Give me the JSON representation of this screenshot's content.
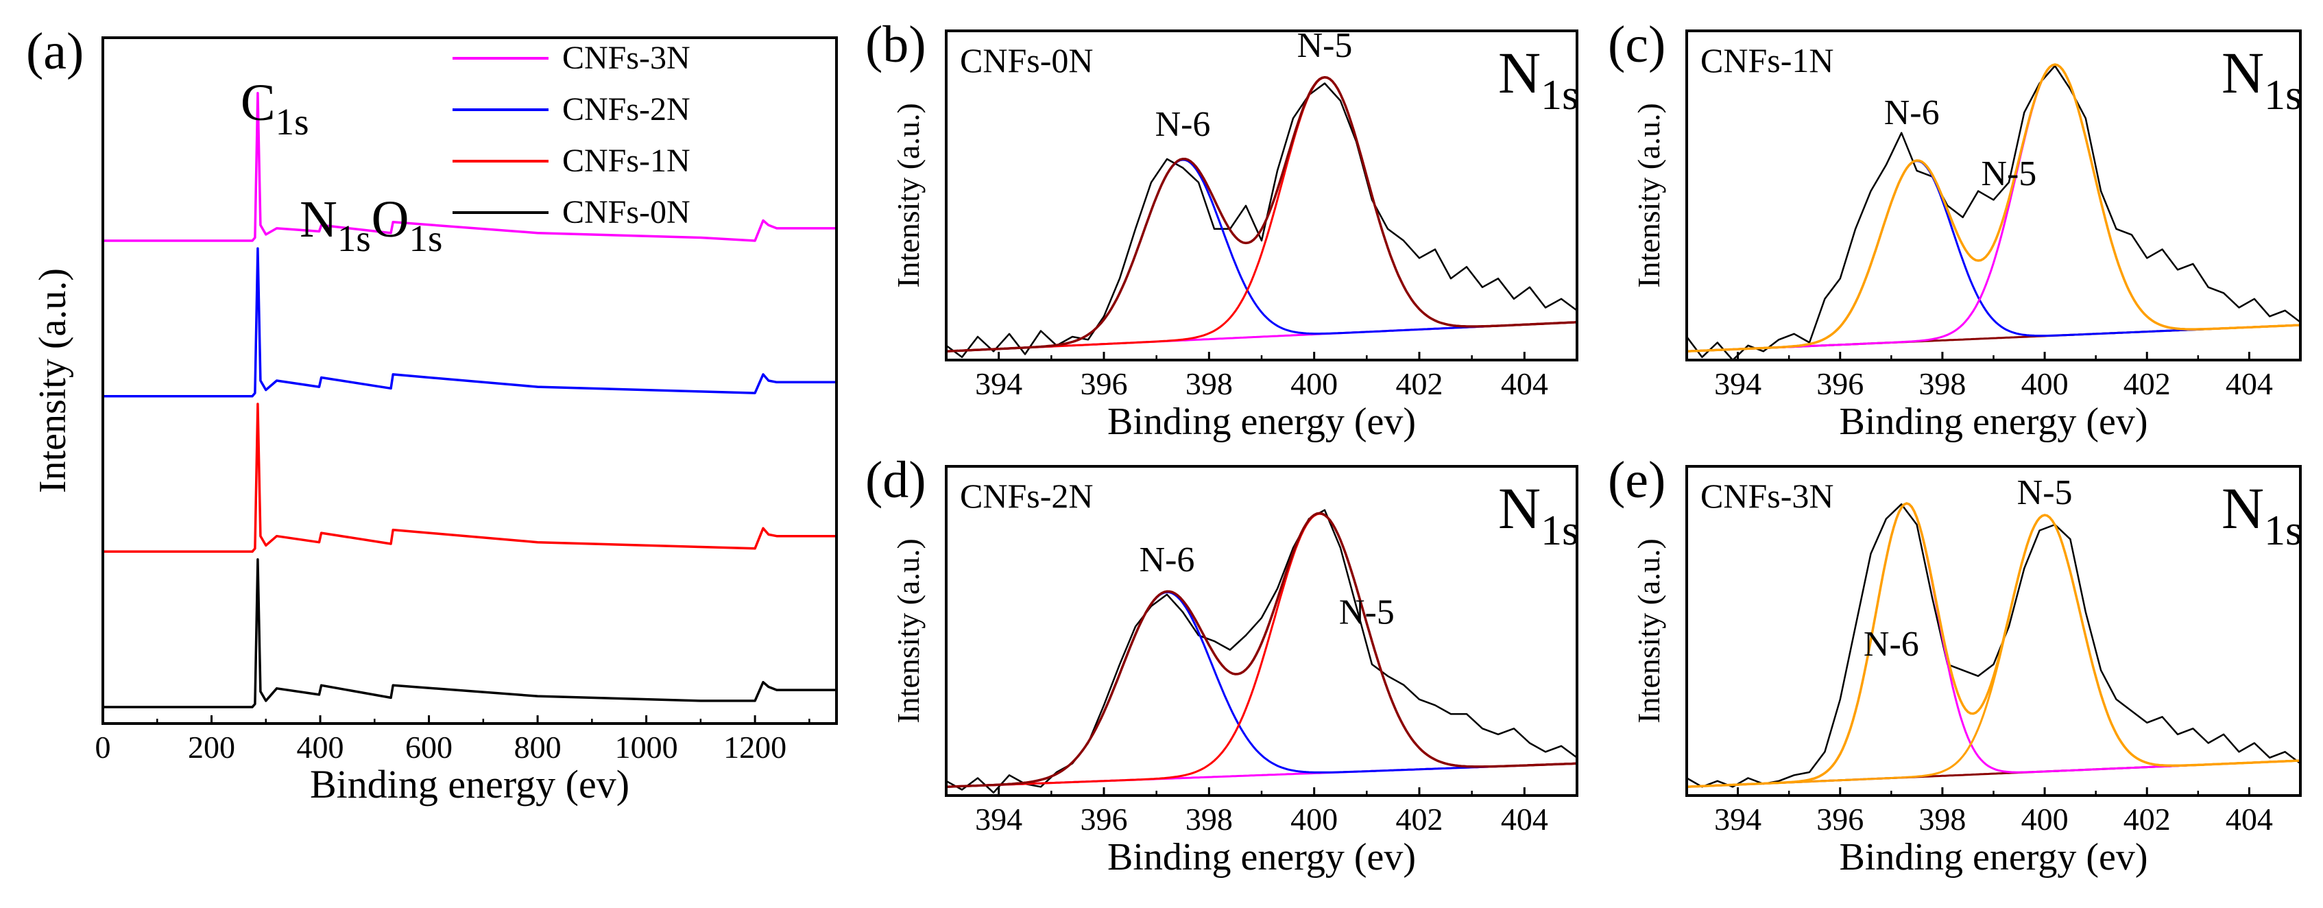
{
  "chart_data": [
    {
      "panel": "(a)",
      "type": "line",
      "title": "",
      "xlabel": "Binding energy (ev)",
      "ylabel": "Intensity (a.u.)",
      "xlim": [
        0,
        1350
      ],
      "ylim": [
        0,
        4.2
      ],
      "xticks": [
        0,
        200,
        400,
        600,
        800,
        1000,
        1200
      ],
      "legend": "top-right",
      "annotations": [
        {
          "main": "C",
          "sub": "1s",
          "x": 285
        },
        {
          "main": "N",
          "sub": "1s",
          "x": 400
        },
        {
          "main": "O",
          "sub": "1s",
          "x": 532
        }
      ],
      "series": [
        {
          "name": "CNFs-3N",
          "color": "#ff00ff",
          "offset": 3.0,
          "x": [
            0,
            275,
            280,
            285,
            290,
            300,
            320,
            398,
            402,
            530,
            534,
            800,
            1100,
            1200,
            1215,
            1225,
            1240,
            1350
          ],
          "y": [
            0,
            0,
            0.02,
            0.95,
            0.1,
            0.04,
            0.08,
            0.06,
            0.1,
            0.05,
            0.12,
            0.05,
            0.02,
            0.0,
            0.13,
            0.1,
            0.08,
            0.08
          ]
        },
        {
          "name": "CNFs-2N",
          "color": "#0000ff",
          "offset": 2.0,
          "x": [
            0,
            275,
            280,
            285,
            290,
            300,
            320,
            398,
            402,
            530,
            534,
            800,
            1100,
            1200,
            1215,
            1225,
            1240,
            1350
          ],
          "y": [
            0,
            0,
            0.02,
            0.95,
            0.1,
            0.04,
            0.1,
            0.06,
            0.12,
            0.05,
            0.14,
            0.06,
            0.03,
            0.02,
            0.14,
            0.1,
            0.09,
            0.09
          ]
        },
        {
          "name": "CNFs-1N",
          "color": "#ff0000",
          "offset": 1.0,
          "x": [
            0,
            275,
            280,
            285,
            290,
            300,
            320,
            398,
            402,
            530,
            534,
            800,
            1100,
            1200,
            1215,
            1225,
            1240,
            1350
          ],
          "y": [
            0,
            0,
            0.02,
            0.95,
            0.1,
            0.04,
            0.1,
            0.06,
            0.12,
            0.05,
            0.14,
            0.06,
            0.03,
            0.02,
            0.15,
            0.11,
            0.1,
            0.1
          ]
        },
        {
          "name": "CNFs-0N",
          "color": "#000000",
          "offset": 0.0,
          "x": [
            0,
            275,
            280,
            285,
            290,
            300,
            320,
            398,
            402,
            530,
            534,
            800,
            1100,
            1200,
            1215,
            1225,
            1240,
            1350
          ],
          "y": [
            0,
            0,
            0.02,
            0.95,
            0.1,
            0.04,
            0.12,
            0.08,
            0.14,
            0.06,
            0.14,
            0.07,
            0.04,
            0.04,
            0.16,
            0.13,
            0.11,
            0.11
          ]
        }
      ]
    },
    {
      "panel": "(b)",
      "type": "line",
      "sample": "CNFs-0N",
      "spectrum_main": "N",
      "spectrum_sub": "1s",
      "xlabel": "Binding energy (ev)",
      "ylabel": "Intensity (a.u.)",
      "xlim": [
        393,
        405
      ],
      "ylim": [
        -0.03,
        1.1
      ],
      "xticks": [
        394,
        396,
        398,
        400,
        402,
        404
      ],
      "peaks": [
        {
          "name": "N-6",
          "center": 397.5,
          "height": 0.62,
          "sigma": 0.75,
          "color": "#0000ff"
        },
        {
          "name": "N-5",
          "center": 400.2,
          "height": 0.88,
          "sigma": 0.8,
          "color": "#ff0000"
        }
      ],
      "envelope_color": "#8b0000",
      "background": {
        "start": 0.0,
        "end": 0.1,
        "color": "#ff00ff"
      },
      "labels": [
        {
          "text": "N-6",
          "x": 397.5,
          "y": 0.74
        },
        {
          "text": "N-5",
          "x": 400.2,
          "y": 1.01
        }
      ],
      "raw_data": {
        "x": [
          393.0,
          393.3,
          393.6,
          393.9,
          394.2,
          394.5,
          394.8,
          395.1,
          395.4,
          395.7,
          396.0,
          396.3,
          396.6,
          396.9,
          397.2,
          397.5,
          397.8,
          398.1,
          398.4,
          398.7,
          399.0,
          399.3,
          399.6,
          399.9,
          400.2,
          400.5,
          400.8,
          401.1,
          401.4,
          401.7,
          402.0,
          402.3,
          402.6,
          402.9,
          403.2,
          403.5,
          403.8,
          404.1,
          404.4,
          404.7,
          405.0
        ],
        "y": [
          0.02,
          -0.02,
          0.05,
          0.0,
          0.06,
          -0.01,
          0.07,
          0.02,
          0.05,
          0.04,
          0.12,
          0.25,
          0.42,
          0.58,
          0.66,
          0.63,
          0.58,
          0.42,
          0.42,
          0.5,
          0.38,
          0.62,
          0.8,
          0.88,
          0.92,
          0.86,
          0.72,
          0.52,
          0.42,
          0.38,
          0.32,
          0.35,
          0.25,
          0.29,
          0.22,
          0.25,
          0.18,
          0.22,
          0.15,
          0.18,
          0.14
        ]
      }
    },
    {
      "panel": "(c)",
      "type": "line",
      "sample": "CNFs-1N",
      "spectrum_main": "N",
      "spectrum_sub": "1s",
      "xlabel": "Binding energy (ev)",
      "ylabel": "Intensity (a.u.)",
      "xlim": [
        393,
        405
      ],
      "ylim": [
        -0.03,
        1.1
      ],
      "xticks": [
        394,
        396,
        398,
        400,
        402,
        404
      ],
      "peaks": [
        {
          "name": "N-6",
          "center": 397.5,
          "height": 0.62,
          "sigma": 0.7,
          "color": "#0000ff"
        },
        {
          "name": "N-5",
          "center": 400.2,
          "height": 0.93,
          "sigma": 0.75,
          "color": "#ff00ff"
        }
      ],
      "envelope_color": "#ffa000",
      "background": {
        "start": 0.0,
        "end": 0.09,
        "color": "#8b0000"
      },
      "labels": [
        {
          "text": "N-6",
          "x": 397.4,
          "y": 0.78
        },
        {
          "text": "N-5",
          "x": 399.3,
          "y": 0.57
        }
      ],
      "raw_data": {
        "x": [
          393.0,
          393.3,
          393.6,
          393.9,
          394.2,
          394.5,
          394.8,
          395.1,
          395.4,
          395.7,
          396.0,
          396.3,
          396.6,
          396.9,
          397.2,
          397.5,
          397.8,
          398.1,
          398.4,
          398.7,
          399.0,
          399.3,
          399.6,
          399.9,
          400.2,
          400.5,
          400.8,
          401.1,
          401.4,
          401.7,
          402.0,
          402.3,
          402.6,
          402.9,
          403.2,
          403.5,
          403.8,
          404.1,
          404.4,
          404.7,
          405.0
        ],
        "y": [
          0.05,
          -0.02,
          0.03,
          -0.03,
          0.02,
          0.0,
          0.04,
          0.06,
          0.03,
          0.18,
          0.25,
          0.42,
          0.55,
          0.64,
          0.75,
          0.62,
          0.6,
          0.5,
          0.46,
          0.55,
          0.52,
          0.58,
          0.82,
          0.92,
          0.98,
          0.9,
          0.8,
          0.55,
          0.42,
          0.4,
          0.32,
          0.35,
          0.28,
          0.3,
          0.22,
          0.2,
          0.15,
          0.18,
          0.12,
          0.14,
          0.1
        ]
      }
    },
    {
      "panel": "(d)",
      "type": "line",
      "sample": "CNFs-2N",
      "spectrum_main": "N",
      "spectrum_sub": "1s",
      "xlabel": "Binding energy (ev)",
      "ylabel": "Intensity (a.u.)",
      "xlim": [
        393,
        405
      ],
      "ylim": [
        -0.03,
        1.1
      ],
      "xticks": [
        394,
        396,
        398,
        400,
        402,
        404
      ],
      "peaks": [
        {
          "name": "N-6",
          "center": 397.2,
          "height": 0.64,
          "sigma": 0.85,
          "color": "#0000ff"
        },
        {
          "name": "N-5",
          "center": 400.1,
          "height": 0.89,
          "sigma": 0.85,
          "color": "#ff0000"
        }
      ],
      "envelope_color": "#8b0000",
      "background": {
        "start": 0.0,
        "end": 0.08,
        "color": "#ff00ff"
      },
      "labels": [
        {
          "text": "N-6",
          "x": 397.2,
          "y": 0.74
        },
        {
          "text": "N-5",
          "x": 401.0,
          "y": 0.56
        }
      ],
      "raw_data": {
        "x": [
          393.0,
          393.3,
          393.6,
          393.9,
          394.2,
          394.5,
          394.8,
          395.1,
          395.4,
          395.7,
          396.0,
          396.3,
          396.6,
          396.9,
          397.2,
          397.5,
          397.8,
          398.1,
          398.4,
          398.7,
          399.0,
          399.3,
          399.6,
          399.9,
          400.2,
          400.5,
          400.8,
          401.1,
          401.4,
          401.7,
          402.0,
          402.3,
          402.6,
          402.9,
          403.2,
          403.5,
          403.8,
          404.1,
          404.4,
          404.7,
          405.0
        ],
        "y": [
          0.02,
          -0.01,
          0.03,
          -0.02,
          0.04,
          0.01,
          0.0,
          0.05,
          0.08,
          0.15,
          0.28,
          0.42,
          0.55,
          0.62,
          0.66,
          0.6,
          0.52,
          0.5,
          0.47,
          0.52,
          0.58,
          0.68,
          0.82,
          0.92,
          0.95,
          0.82,
          0.62,
          0.42,
          0.38,
          0.35,
          0.3,
          0.28,
          0.25,
          0.25,
          0.2,
          0.18,
          0.2,
          0.15,
          0.12,
          0.14,
          0.1
        ]
      }
    },
    {
      "panel": "(e)",
      "type": "line",
      "sample": "CNFs-3N",
      "spectrum_main": "N",
      "spectrum_sub": "1s",
      "xlabel": "Binding energy (ev)",
      "ylabel": "Intensity (a.u.)",
      "xlim": [
        393,
        405
      ],
      "ylim": [
        -0.03,
        1.1
      ],
      "xticks": [
        394,
        396,
        398,
        400,
        402,
        404
      ],
      "peaks": [
        {
          "name": "N-6",
          "center": 397.3,
          "height": 0.94,
          "sigma": 0.6,
          "color": "#ff00ff"
        },
        {
          "name": "N-5",
          "center": 400.0,
          "height": 0.88,
          "sigma": 0.7,
          "color": "#ffa000"
        }
      ],
      "envelope_color": "#ffa000",
      "background": {
        "start": 0.0,
        "end": 0.09,
        "color": "#8b0000"
      },
      "labels": [
        {
          "text": "N-6",
          "x": 397.0,
          "y": 0.45
        },
        {
          "text": "N-5",
          "x": 400.0,
          "y": 0.97
        }
      ],
      "raw_data": {
        "x": [
          393.0,
          393.3,
          393.6,
          393.9,
          394.2,
          394.5,
          394.8,
          395.1,
          395.4,
          395.7,
          396.0,
          396.3,
          396.6,
          396.9,
          397.2,
          397.5,
          397.8,
          398.1,
          398.4,
          398.7,
          399.0,
          399.3,
          399.6,
          399.9,
          400.2,
          400.5,
          400.8,
          401.1,
          401.4,
          401.7,
          402.0,
          402.3,
          402.6,
          402.9,
          403.2,
          403.5,
          403.8,
          404.1,
          404.4,
          404.7,
          405.0
        ],
        "y": [
          0.03,
          0.0,
          0.02,
          0.0,
          0.03,
          0.01,
          0.02,
          0.04,
          0.05,
          0.12,
          0.3,
          0.55,
          0.8,
          0.92,
          0.97,
          0.9,
          0.65,
          0.42,
          0.4,
          0.38,
          0.42,
          0.55,
          0.75,
          0.88,
          0.9,
          0.85,
          0.6,
          0.4,
          0.3,
          0.26,
          0.22,
          0.24,
          0.18,
          0.2,
          0.15,
          0.18,
          0.12,
          0.15,
          0.1,
          0.12,
          0.08
        ]
      }
    }
  ]
}
